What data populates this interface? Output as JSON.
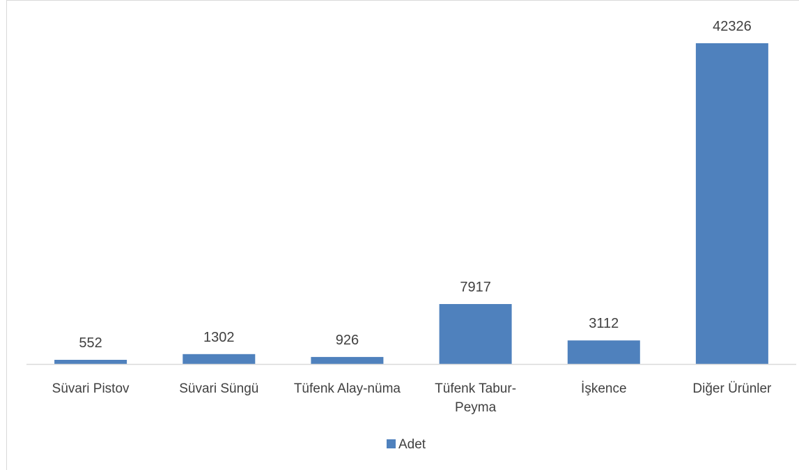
{
  "chart_data": {
    "type": "bar",
    "categories": [
      [
        "Süvari Pistov"
      ],
      [
        "Süvari Süngü"
      ],
      [
        "Tüfenk Alay-nüma"
      ],
      [
        "Tüfenk Tabur-",
        "Peyma"
      ],
      [
        "İşkence"
      ],
      [
        "Diğer Ürünler"
      ]
    ],
    "series": [
      {
        "name": "Adet",
        "values": [
          552,
          1302,
          926,
          7917,
          3112,
          42326
        ]
      }
    ],
    "ylim": [
      0,
      42326
    ],
    "grid": false,
    "legend_position": "bottom",
    "data_labels": true,
    "colors": {
      "bar": "#4F81BD",
      "axis": "#d9d9d9",
      "text": "#404040"
    }
  }
}
